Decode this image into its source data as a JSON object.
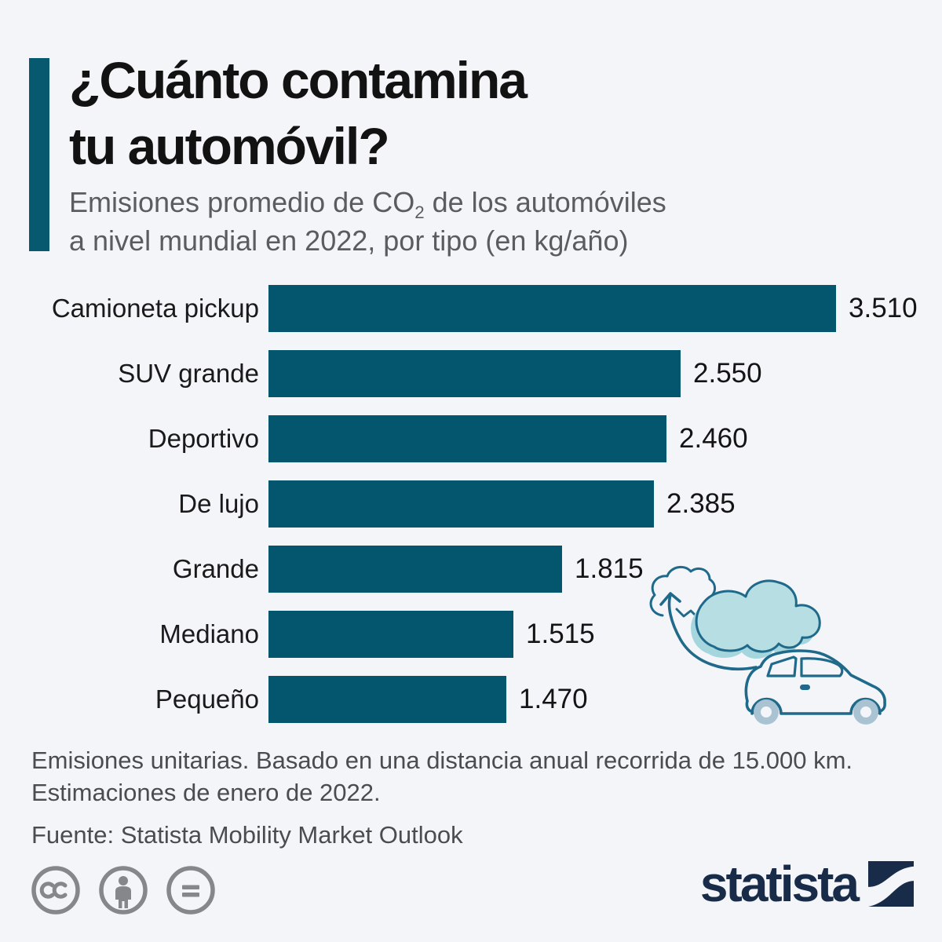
{
  "header": {
    "title_lines": [
      "¿Cuánto contamina",
      "tu automóvil?"
    ],
    "subtitle": {
      "line1_pre": "Emisiones promedio de CO",
      "line1_sub": "2",
      "line1_post": " de los automóviles",
      "line2": "a nivel mundial en 2022, por tipo (en kg/año)"
    }
  },
  "chart_data": {
    "type": "bar",
    "orientation": "horizontal",
    "title": "¿Cuánto contamina tu automóvil?",
    "subtitle": "Emisiones promedio de CO2 de los automóviles a nivel mundial en 2022, por tipo (en kg/año)",
    "unit": "kg/año",
    "categories": [
      "Camioneta pickup",
      "SUV grande",
      "Deportivo",
      "De lujo",
      "Grande",
      "Mediano",
      "Pequeño"
    ],
    "values": [
      3510,
      2550,
      2460,
      2385,
      1815,
      1515,
      1470
    ],
    "value_labels": [
      "3.510",
      "2.550",
      "2.460",
      "2.385",
      "1.815",
      "1.515",
      "1.470"
    ],
    "xlim": [
      0,
      3510
    ],
    "grid": false,
    "legend": false,
    "bar_color": "#03566e"
  },
  "footer": {
    "note_lines": [
      "Emisiones unitarias. Basado en una distancia anual recorrida de 15.000 km.",
      "Estimaciones de enero de 2022."
    ],
    "source": "Fuente: Statista Mobility Market Outlook"
  },
  "branding": {
    "logo_text": "statista",
    "license_icons": [
      "cc-icon",
      "cc-by-icon",
      "cc-nd-icon"
    ]
  },
  "illustration": {
    "items": [
      "outlined-cloud",
      "arrow-up",
      "filled-cloud",
      "car"
    ],
    "stroke_color": "#1f6a8b",
    "cloud_fill": "#b7dfe3",
    "cloud_shadow": "#a6d6dd",
    "wheel_fill": "#a9c3d3"
  },
  "colors": {
    "background": "#f4f5f9",
    "bar": "#03566e",
    "accent_bar": "#07596f",
    "title_text": "#121212",
    "subtitle_text": "#5a5c5f",
    "footnote_text": "#4a4c4e",
    "license_gray": "#85878a",
    "logo_navy": "#182b49"
  }
}
